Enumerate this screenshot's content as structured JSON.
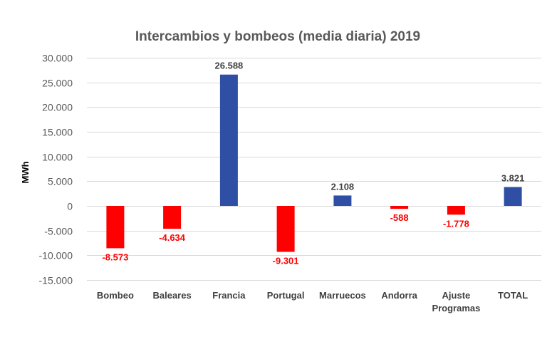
{
  "chart_data": {
    "type": "bar",
    "title": "Intercambios y bombeos (media diaria) 2019",
    "xlabel": "",
    "ylabel": "MWh",
    "ylim": [
      -15000,
      30000
    ],
    "ytick_step": 5000,
    "yticks": [
      30000,
      25000,
      20000,
      15000,
      10000,
      5000,
      0,
      -5000,
      -10000,
      -15000
    ],
    "ytick_labels": [
      "30.000",
      "25.000",
      "20.000",
      "15.000",
      "10.000",
      "5.000",
      "0",
      "-5.000",
      "-10.000",
      "-15.000"
    ],
    "grid": true,
    "legend": "none",
    "categories": [
      [
        "Bombeo"
      ],
      [
        "Baleares"
      ],
      [
        "Francia"
      ],
      [
        "Portugal"
      ],
      [
        "Marruecos"
      ],
      [
        "Andorra"
      ],
      [
        "Ajuste",
        "Programas"
      ],
      [
        "TOTAL"
      ]
    ],
    "values": [
      -8573,
      -4634,
      26588,
      -9301,
      2108,
      -588,
      -1778,
      3821
    ],
    "data_labels": [
      "-8.573",
      "-4.634",
      "26.588",
      "-9.301",
      "2.108",
      "-588",
      "-1.778",
      "3.821"
    ],
    "colors": {
      "positive": "#2E4FA3",
      "negative": "#FF0000",
      "positive_label": "#404040",
      "negative_label": "#FF0000",
      "grid": "#D9D9D9",
      "title": "#595959"
    }
  }
}
